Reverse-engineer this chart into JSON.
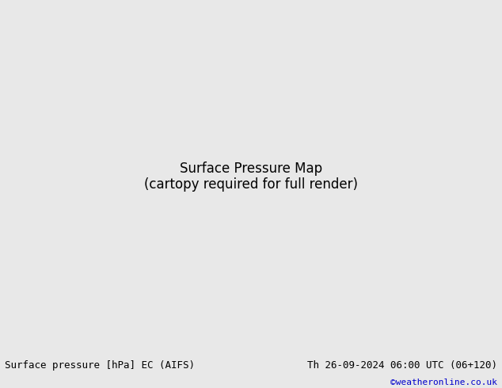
{
  "title_left": "Surface pressure [hPa] EC (AIFS)",
  "title_right": "Th 26-09-2024 06:00 UTC (06+120)",
  "copyright": "©weatheronline.co.uk",
  "background_color": "#c8d8e8",
  "land_color": "#c8e8c0",
  "land_color2": "#b0d8a0",
  "border_color": "#808080",
  "footer_bg": "#e8e8e8",
  "footer_text_color": "#000000",
  "copyright_color": "#0000cc",
  "isobar_colors": {
    "below_1013": "#0000cc",
    "at_1013": "#000000",
    "above_1013": "#cc0000"
  },
  "isobar_interval": 4,
  "isobar_linewidth": 1.0,
  "label_fontsize": 7,
  "title_fontsize": 9,
  "map_extent": [
    -100,
    20,
    -70,
    15
  ],
  "figsize": [
    6.34,
    4.9
  ],
  "dpi": 100
}
